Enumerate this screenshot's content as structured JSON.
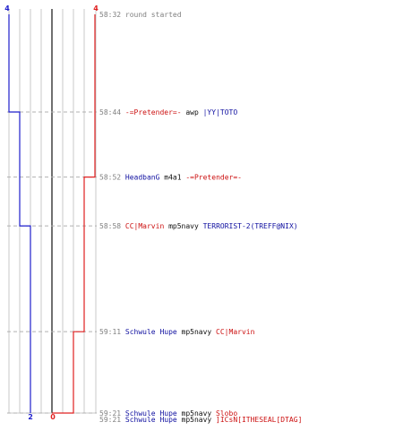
{
  "chart_data": {
    "type": "line",
    "teams": [
      {
        "name": "blue",
        "color": "#1e1ecc",
        "start_count": "4",
        "end_count": "2"
      },
      {
        "name": "red",
        "color": "#e02020",
        "start_count": "4",
        "end_count": "0"
      }
    ],
    "series": [
      {
        "name": "blue",
        "color": "#1e1ecc",
        "x": [
          "58:32",
          "58:44",
          "58:44",
          "58:58",
          "58:58",
          "59:21"
        ],
        "y": [
          4,
          4,
          3,
          3,
          2,
          2
        ]
      },
      {
        "name": "red",
        "color": "#e02020",
        "x": [
          "58:32",
          "58:52",
          "58:52",
          "59:11",
          "59:11",
          "59:21",
          "59:21"
        ],
        "y": [
          4,
          4,
          3,
          3,
          2,
          2,
          0
        ]
      }
    ],
    "ylim": [
      0,
      4
    ],
    "grid": true
  },
  "events": [
    {
      "time": "58:32",
      "row": 0,
      "parts": [
        {
          "text": "round started",
          "color": "gray"
        }
      ]
    },
    {
      "time": "58:44",
      "row": 1,
      "parts": [
        {
          "text": "-=Pretender=-",
          "color": "red"
        },
        {
          "text": "awp",
          "color": "dark"
        },
        {
          "text": "|YY|TOTO",
          "color": "blue"
        }
      ]
    },
    {
      "time": "58:52",
      "row": 2,
      "parts": [
        {
          "text": "HeadbanG",
          "color": "blue"
        },
        {
          "text": "m4a1",
          "color": "dark"
        },
        {
          "text": "-=Pretender=-",
          "color": "red"
        }
      ]
    },
    {
      "time": "58:58",
      "row": 3,
      "parts": [
        {
          "text": "CC|Marvin",
          "color": "red"
        },
        {
          "text": "mp5navy",
          "color": "dark"
        },
        {
          "text": "TERRORIST-2(TREFF@NIX)",
          "color": "blue"
        }
      ]
    },
    {
      "time": "59:11",
      "row": 4,
      "parts": [
        {
          "text": "Schwule Hupe",
          "color": "blue"
        },
        {
          "text": "mp5navy",
          "color": "dark"
        },
        {
          "text": "CC|Marvin",
          "color": "red"
        }
      ]
    },
    {
      "time": "59:21",
      "row": 5,
      "parts": [
        {
          "text": "Schwule Hupe",
          "color": "blue"
        },
        {
          "text": "mp5navy",
          "color": "dark"
        },
        {
          "text": "Slobo",
          "color": "red"
        }
      ]
    },
    {
      "time": "59:21",
      "row": 6,
      "parts": [
        {
          "text": "Schwule Hupe",
          "color": "blue"
        },
        {
          "text": "mp5navy",
          "color": "dark"
        },
        {
          "text": "]ICsN[ITHESEAL[DTAG]",
          "color": "red"
        }
      ]
    }
  ]
}
